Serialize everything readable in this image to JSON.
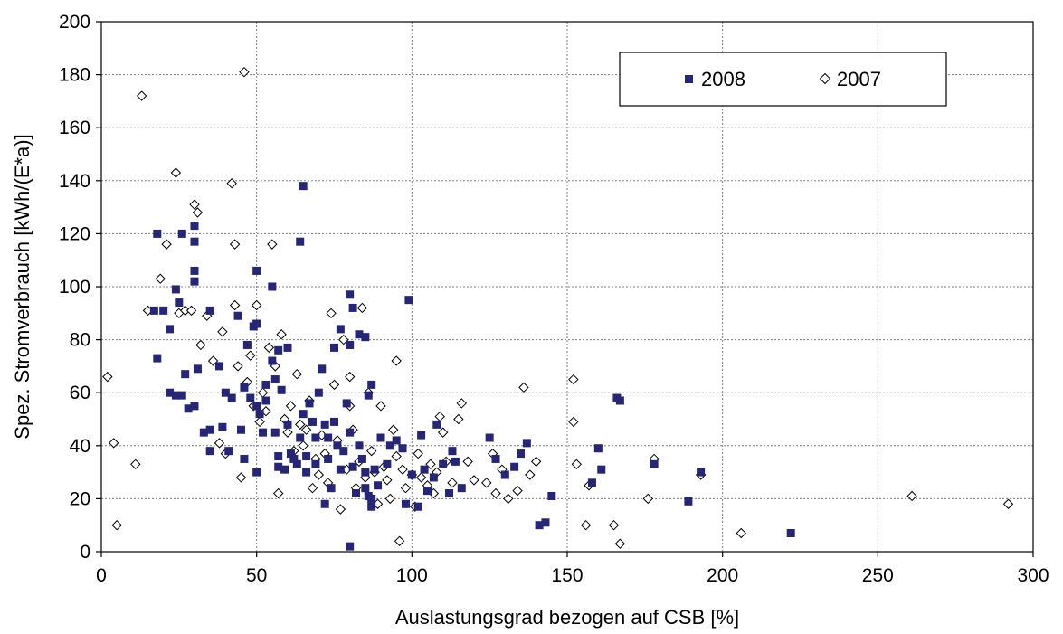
{
  "chart_data": {
    "type": "scatter",
    "xlabel": "Auslastungsgrad bezogen auf CSB [%]",
    "ylabel": "Spez. Stromverbrauch [kWh/(E*a)]",
    "xlim": [
      0,
      300
    ],
    "ylim": [
      0,
      200
    ],
    "xticks": [
      "0",
      "50",
      "100",
      "150",
      "200",
      "250",
      "300"
    ],
    "yticks": [
      "0",
      "20",
      "40",
      "60",
      "80",
      "100",
      "120",
      "140",
      "160",
      "180",
      "200"
    ],
    "grid": true,
    "legend_position": "top-right",
    "colors": {
      "s2008": "#262673",
      "s2007": "#ffffff"
    },
    "series": [
      {
        "name": "2008",
        "marker": "square",
        "points": [
          [
            18,
            120
          ],
          [
            24,
            99
          ],
          [
            25,
            94
          ],
          [
            26,
            120
          ],
          [
            30,
            123
          ],
          [
            30,
            117
          ],
          [
            30,
            106
          ],
          [
            30,
            102
          ],
          [
            17,
            91
          ],
          [
            20,
            91
          ],
          [
            22,
            84
          ],
          [
            18,
            73
          ],
          [
            22,
            60
          ],
          [
            24,
            59
          ],
          [
            26,
            59
          ],
          [
            27,
            67
          ],
          [
            31,
            69
          ],
          [
            35,
            91
          ],
          [
            38,
            70
          ],
          [
            40,
            60
          ],
          [
            42,
            58
          ],
          [
            44,
            89
          ],
          [
            46,
            62
          ],
          [
            47,
            78
          ],
          [
            49,
            85
          ],
          [
            50,
            106
          ],
          [
            50,
            86
          ],
          [
            55,
            100
          ],
          [
            57,
            76
          ],
          [
            60,
            77
          ],
          [
            65,
            138
          ],
          [
            64,
            117
          ],
          [
            80,
            97
          ],
          [
            81,
            92
          ],
          [
            83,
            82
          ],
          [
            85,
            81
          ],
          [
            99,
            95
          ],
          [
            77,
            84
          ],
          [
            75,
            77
          ],
          [
            80,
            78
          ],
          [
            87,
            63
          ],
          [
            86,
            59
          ],
          [
            28,
            54
          ],
          [
            30,
            55
          ],
          [
            33,
            45
          ],
          [
            35,
            46
          ],
          [
            35,
            38
          ],
          [
            39,
            47
          ],
          [
            41,
            38
          ],
          [
            45,
            46
          ],
          [
            46,
            35
          ],
          [
            48,
            58
          ],
          [
            50,
            55
          ],
          [
            51,
            52
          ],
          [
            52,
            45
          ],
          [
            50,
            30
          ],
          [
            53,
            63
          ],
          [
            53,
            57
          ],
          [
            55,
            72
          ],
          [
            56,
            65
          ],
          [
            56,
            45
          ],
          [
            57,
            36
          ],
          [
            57,
            32
          ],
          [
            59,
            31
          ],
          [
            58,
            61
          ],
          [
            60,
            48
          ],
          [
            61,
            37
          ],
          [
            62,
            35
          ],
          [
            63,
            33
          ],
          [
            64,
            43
          ],
          [
            65,
            52
          ],
          [
            66,
            36
          ],
          [
            66,
            30
          ],
          [
            67,
            56
          ],
          [
            68,
            49
          ],
          [
            69,
            43
          ],
          [
            69,
            33
          ],
          [
            70,
            60
          ],
          [
            71,
            69
          ],
          [
            72,
            48
          ],
          [
            73,
            43
          ],
          [
            73,
            35
          ],
          [
            72,
            18
          ],
          [
            74,
            24
          ],
          [
            75,
            49
          ],
          [
            76,
            40
          ],
          [
            77,
            31
          ],
          [
            78,
            38
          ],
          [
            79,
            56
          ],
          [
            80,
            45
          ],
          [
            80,
            2
          ],
          [
            81,
            32
          ],
          [
            82,
            22
          ],
          [
            83,
            40
          ],
          [
            84,
            35
          ],
          [
            85,
            30
          ],
          [
            85,
            24
          ],
          [
            86,
            21
          ],
          [
            87,
            20
          ],
          [
            87,
            17
          ],
          [
            88,
            31
          ],
          [
            89,
            25
          ],
          [
            90,
            43
          ],
          [
            92,
            33
          ],
          [
            93,
            40
          ],
          [
            95,
            42
          ],
          [
            97,
            39
          ],
          [
            98,
            18
          ],
          [
            100,
            29
          ],
          [
            102,
            17
          ],
          [
            103,
            44
          ],
          [
            104,
            31
          ],
          [
            105,
            23
          ],
          [
            107,
            28
          ],
          [
            108,
            48
          ],
          [
            110,
            33
          ],
          [
            112,
            22
          ],
          [
            113,
            38
          ],
          [
            114,
            34
          ],
          [
            116,
            24
          ],
          [
            125,
            43
          ],
          [
            127,
            35
          ],
          [
            130,
            29
          ],
          [
            133,
            32
          ],
          [
            135,
            37
          ],
          [
            137,
            41
          ],
          [
            141,
            10
          ],
          [
            143,
            11
          ],
          [
            145,
            21
          ],
          [
            160,
            39
          ],
          [
            161,
            31
          ],
          [
            158,
            26
          ],
          [
            166,
            58
          ],
          [
            167,
            57
          ],
          [
            178,
            33
          ],
          [
            189,
            19
          ],
          [
            193,
            30
          ],
          [
            222,
            7
          ]
        ]
      },
      {
        "name": "2007",
        "marker": "diamond",
        "points": [
          [
            2,
            66
          ],
          [
            4,
            41
          ],
          [
            5,
            10
          ],
          [
            11,
            33
          ],
          [
            13,
            172
          ],
          [
            15,
            91
          ],
          [
            19,
            103
          ],
          [
            21,
            116
          ],
          [
            24,
            143
          ],
          [
            25,
            90
          ],
          [
            27,
            91
          ],
          [
            29,
            91
          ],
          [
            30,
            131
          ],
          [
            31,
            128
          ],
          [
            32,
            78
          ],
          [
            34,
            89
          ],
          [
            36,
            72
          ],
          [
            38,
            41
          ],
          [
            39,
            83
          ],
          [
            40,
            37
          ],
          [
            42,
            139
          ],
          [
            43,
            116
          ],
          [
            43,
            93
          ],
          [
            44,
            70
          ],
          [
            45,
            28
          ],
          [
            46,
            181
          ],
          [
            47,
            64
          ],
          [
            48,
            74
          ],
          [
            49,
            55
          ],
          [
            50,
            93
          ],
          [
            51,
            49
          ],
          [
            52,
            60
          ],
          [
            53,
            53
          ],
          [
            54,
            77
          ],
          [
            55,
            116
          ],
          [
            56,
            70
          ],
          [
            57,
            22
          ],
          [
            58,
            82
          ],
          [
            59,
            50
          ],
          [
            60,
            45
          ],
          [
            61,
            55
          ],
          [
            62,
            38
          ],
          [
            63,
            67
          ],
          [
            64,
            48
          ],
          [
            65,
            40
          ],
          [
            66,
            46
          ],
          [
            67,
            57
          ],
          [
            68,
            24
          ],
          [
            69,
            35
          ],
          [
            70,
            29
          ],
          [
            71,
            44
          ],
          [
            72,
            37
          ],
          [
            73,
            26
          ],
          [
            74,
            90
          ],
          [
            75,
            63
          ],
          [
            76,
            42
          ],
          [
            77,
            16
          ],
          [
            78,
            80
          ],
          [
            79,
            31
          ],
          [
            80,
            66
          ],
          [
            80,
            55
          ],
          [
            81,
            46
          ],
          [
            82,
            24
          ],
          [
            83,
            34
          ],
          [
            84,
            92
          ],
          [
            85,
            28
          ],
          [
            86,
            60
          ],
          [
            87,
            38
          ],
          [
            88,
            30
          ],
          [
            89,
            18
          ],
          [
            90,
            55
          ],
          [
            91,
            32
          ],
          [
            92,
            27
          ],
          [
            93,
            20
          ],
          [
            94,
            46
          ],
          [
            95,
            72
          ],
          [
            95,
            36
          ],
          [
            96,
            4
          ],
          [
            97,
            31
          ],
          [
            98,
            24
          ],
          [
            100,
            29
          ],
          [
            101,
            17
          ],
          [
            102,
            37
          ],
          [
            103,
            28
          ],
          [
            105,
            25
          ],
          [
            106,
            33
          ],
          [
            107,
            22
          ],
          [
            108,
            30
          ],
          [
            109,
            51
          ],
          [
            110,
            45
          ],
          [
            111,
            34
          ],
          [
            113,
            26
          ],
          [
            115,
            50
          ],
          [
            116,
            56
          ],
          [
            118,
            34
          ],
          [
            120,
            27
          ],
          [
            124,
            26
          ],
          [
            126,
            37
          ],
          [
            127,
            22
          ],
          [
            129,
            31
          ],
          [
            131,
            20
          ],
          [
            134,
            23
          ],
          [
            136,
            62
          ],
          [
            138,
            29
          ],
          [
            140,
            34
          ],
          [
            152,
            65
          ],
          [
            152,
            49
          ],
          [
            153,
            33
          ],
          [
            156,
            10
          ],
          [
            157,
            25
          ],
          [
            165,
            10
          ],
          [
            167,
            3
          ],
          [
            176,
            20
          ],
          [
            178,
            35
          ],
          [
            193,
            29
          ],
          [
            206,
            7
          ],
          [
            261,
            21
          ],
          [
            292,
            18
          ]
        ]
      }
    ]
  }
}
